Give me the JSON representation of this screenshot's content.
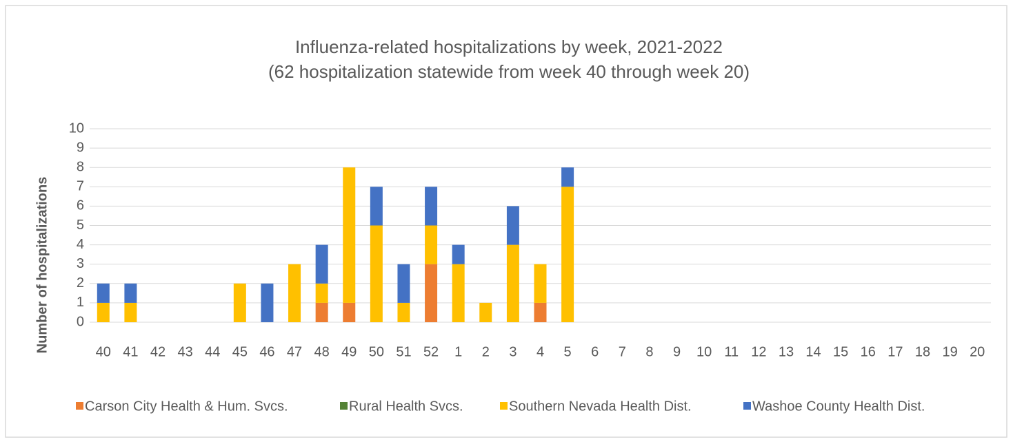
{
  "chart_data": {
    "type": "stacked-bar",
    "title": "Influenza-related hospitalizations by week, 2021-2022",
    "subtitle": "(62 hospitalization statewide from week 40 through week 20)",
    "y_label": "Number of hospitalizations",
    "categories": [
      "40",
      "41",
      "42",
      "43",
      "44",
      "45",
      "46",
      "47",
      "48",
      "49",
      "50",
      "51",
      "52",
      "1",
      "2",
      "3",
      "4",
      "5",
      "6",
      "7",
      "8",
      "9",
      "10",
      "11",
      "12",
      "13",
      "14",
      "15",
      "16",
      "17",
      "18",
      "19",
      "20"
    ],
    "series": [
      {
        "name": "Carson City Health & Hum. Svcs.",
        "color": "#ed7d31",
        "values": [
          0,
          0,
          0,
          0,
          0,
          0,
          0,
          0,
          1,
          1,
          0,
          0,
          3,
          0,
          0,
          0,
          1,
          0,
          0,
          0,
          0,
          0,
          0,
          0,
          0,
          0,
          0,
          0,
          0,
          0,
          0,
          0,
          0
        ]
      },
      {
        "name": "Rural Health Svcs.",
        "color": "#548235",
        "values": [
          0,
          0,
          0,
          0,
          0,
          0,
          0,
          0,
          0,
          0,
          0,
          0,
          0,
          0,
          0,
          0,
          0,
          0,
          0,
          0,
          0,
          0,
          0,
          0,
          0,
          0,
          0,
          0,
          0,
          0,
          0,
          0,
          0
        ]
      },
      {
        "name": "Southern Nevada Health Dist.",
        "color": "#ffc000",
        "values": [
          1,
          1,
          0,
          0,
          0,
          2,
          0,
          3,
          1,
          7,
          5,
          1,
          2,
          3,
          1,
          4,
          2,
          7,
          0,
          0,
          0,
          0,
          0,
          0,
          0,
          0,
          0,
          0,
          0,
          0,
          0,
          0,
          0
        ]
      },
      {
        "name": "Washoe County Health Dist.",
        "color": "#4472c4",
        "values": [
          1,
          1,
          0,
          0,
          0,
          0,
          2,
          0,
          2,
          0,
          2,
          2,
          2,
          1,
          0,
          2,
          0,
          1,
          0,
          0,
          0,
          0,
          0,
          0,
          0,
          0,
          0,
          0,
          0,
          0,
          0,
          0,
          0
        ]
      }
    ],
    "ylim": [
      0,
      10
    ],
    "yticks": [
      0,
      1,
      2,
      3,
      4,
      5,
      6,
      7,
      8,
      9,
      10
    ],
    "grid": true,
    "legend": "bottom"
  }
}
